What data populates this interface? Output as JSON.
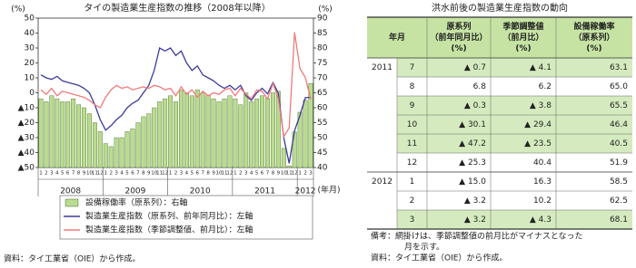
{
  "chart_data": {
    "type": "bar-line",
    "title": "タイの製造業生産指数の推移（2008年以降）",
    "y_unit": "(%)",
    "y2_unit": "(%)",
    "x_unit": "(年月)",
    "categories": [
      "1",
      "2",
      "3",
      "4",
      "5",
      "6",
      "7",
      "8",
      "9",
      "10",
      "11",
      "12",
      "1",
      "2",
      "3",
      "4",
      "5",
      "6",
      "7",
      "8",
      "9",
      "10",
      "11",
      "12",
      "1",
      "2",
      "3",
      "4",
      "5",
      "6",
      "7",
      "8",
      "9",
      "10",
      "11",
      "12",
      "1",
      "2",
      "3",
      "4",
      "5",
      "6",
      "7",
      "8",
      "9",
      "10",
      "11",
      "12",
      "1",
      "2",
      "3"
    ],
    "years": [
      "2008",
      "2009",
      "2010",
      "2011",
      "2012"
    ],
    "series": [
      {
        "name": "設備稼働率（原系列）：右軸",
        "type": "bar",
        "axis": "y2",
        "color": "#b9dc8f",
        "border": "#4a6a2a",
        "values": [
          63,
          62,
          64,
          63,
          62,
          62,
          63,
          61,
          60,
          58,
          55,
          52,
          48,
          47,
          50,
          50,
          52,
          53,
          55,
          57,
          58,
          60,
          62,
          63,
          64,
          62,
          66,
          65,
          64,
          66,
          65,
          64,
          63,
          62,
          63,
          64,
          63,
          61,
          65,
          62,
          63,
          64,
          63.1,
          65.0,
          65.5,
          46.4,
          40.5,
          51.9,
          58.5,
          62.5,
          68.1
        ]
      },
      {
        "name": "製造業生産指数（原系列、前年同月比）：左軸",
        "type": "line",
        "axis": "y",
        "color": "#3a3a9a",
        "values": [
          12,
          10,
          9,
          11,
          8,
          7,
          6,
          5,
          3,
          0,
          -8,
          -18,
          -25,
          -22,
          -18,
          -15,
          -10,
          -7,
          -5,
          0,
          5,
          15,
          30,
          28,
          30,
          25,
          28,
          20,
          15,
          18,
          12,
          10,
          8,
          5,
          3,
          5,
          2,
          5,
          -2,
          -5,
          0,
          3,
          -0.7,
          6.8,
          -0.3,
          -30.1,
          -47.2,
          -25.3,
          -15.0,
          -3.2,
          -3.2
        ]
      },
      {
        "name": "製造業生産指数（季節調整値、前月比）：左軸",
        "type": "line",
        "axis": "y",
        "color": "#f07a7a",
        "values": [
          2,
          -1,
          3,
          -2,
          1,
          0,
          -1,
          -2,
          -3,
          -5,
          -8,
          -10,
          -3,
          2,
          5,
          3,
          4,
          2,
          3,
          4,
          3,
          5,
          4,
          2,
          3,
          -2,
          4,
          -1,
          2,
          -3,
          1,
          -2,
          0,
          -1,
          2,
          3,
          -2,
          3,
          -1,
          -4,
          2,
          1,
          -4.1,
          6.2,
          -3.8,
          -29.4,
          -23.5,
          40.4,
          16.3,
          10.2,
          -4.3
        ]
      }
    ],
    "ylim": [
      -50,
      50
    ],
    "yticks": [
      {
        "value": -50,
        "label": "▲50"
      },
      {
        "value": -40,
        "label": "▲40"
      },
      {
        "value": -30,
        "label": "▲30"
      },
      {
        "value": -20,
        "label": "▲20"
      },
      {
        "value": -10,
        "label": "▲10"
      },
      0,
      10,
      20,
      30,
      40,
      50
    ],
    "y2lim": [
      40,
      90
    ],
    "y2ticks": [
      40,
      45,
      50,
      55,
      60,
      65,
      70,
      75,
      80,
      85,
      90
    ],
    "source": "資料：タイ工業省（OIE）から作成。"
  },
  "table": {
    "title": "洪水前後の製造業生産指数の動向",
    "header": [
      [
        "年月"
      ],
      [
        "原系列",
        "（前年同月比）",
        "(%)"
      ],
      [
        "季節調整値",
        "（前月比）",
        "(%)"
      ],
      [
        "設備稼働率",
        "（原系列）",
        "(%)"
      ]
    ],
    "groups": [
      {
        "year": "2011",
        "rows": [
          {
            "shaded": true,
            "cells": [
              "7",
              "▲ 0.7",
              "▲ 4.1",
              "63.1"
            ]
          },
          {
            "shaded": false,
            "cells": [
              "8",
              "6.8",
              "6.2",
              "65.0"
            ]
          },
          {
            "shaded": true,
            "cells": [
              "9",
              "▲ 0.3",
              "▲ 3.8",
              "65.5"
            ]
          },
          {
            "shaded": true,
            "cells": [
              "10",
              "▲ 30.1",
              "▲ 29.4",
              "46.4"
            ]
          },
          {
            "shaded": true,
            "cells": [
              "11",
              "▲ 47.2",
              "▲ 23.5",
              "40.5"
            ]
          },
          {
            "shaded": false,
            "cells": [
              "12",
              "▲ 25.3",
              "40.4",
              "51.9"
            ]
          }
        ]
      },
      {
        "year": "2012",
        "rows": [
          {
            "shaded": false,
            "cells": [
              "1",
              "▲ 15.0",
              "16.3",
              "58.5"
            ]
          },
          {
            "shaded": false,
            "cells": [
              "2",
              "▲ 3.2",
              "10.2",
              "62.5"
            ]
          },
          {
            "shaded": true,
            "cells": [
              "3",
              "▲ 3.2",
              "▲ 4.3",
              "68.1"
            ]
          }
        ]
      }
    ],
    "shade_color": "#d5ebbf",
    "header_color": "#c6e3a3",
    "note": [
      "備考：網掛けは、季節調整値の前月比がマイナスとなった",
      "月を示す。"
    ],
    "source": "資料：タイ工業省（OIE）から作成。"
  }
}
